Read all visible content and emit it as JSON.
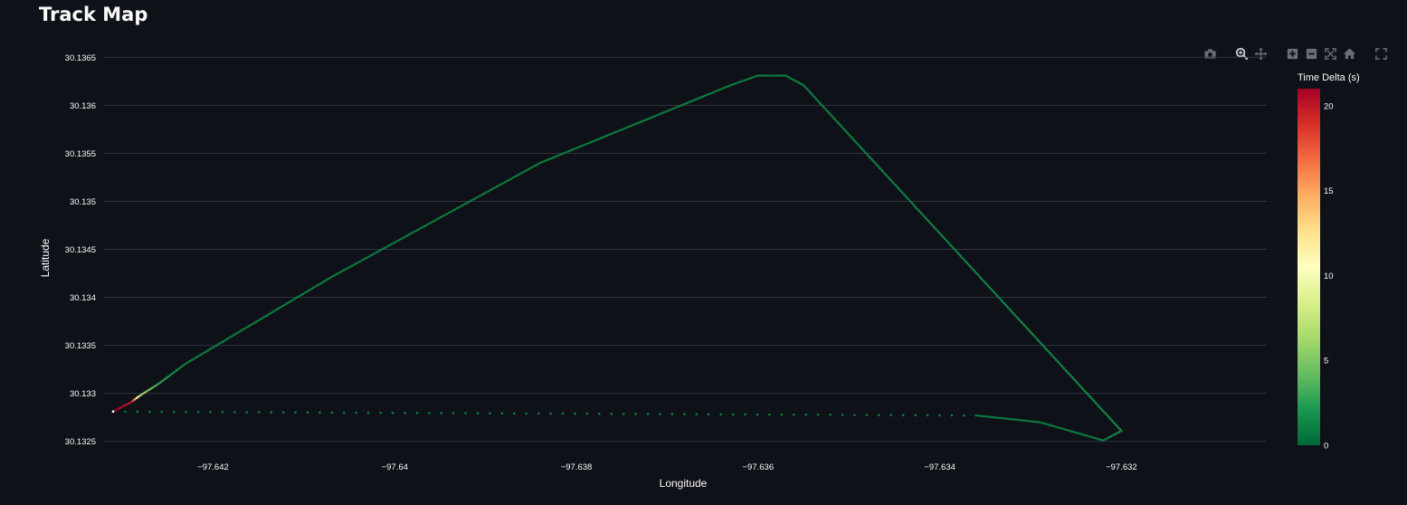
{
  "page": {
    "title": "Track Map"
  },
  "modebar": {
    "icons": [
      "camera-icon",
      "zoom-icon",
      "pan-icon",
      "zoom-in-icon",
      "zoom-out-icon",
      "autoscale-icon",
      "reset-axes-icon",
      "fullscreen-icon"
    ]
  },
  "chart_data": {
    "type": "scatter",
    "title": "",
    "xlabel": "Longitude",
    "ylabel": "Latitude",
    "xlim": [
      -97.6432,
      -97.6304
    ],
    "ylim": [
      30.13245,
      30.13655
    ],
    "x_ticks": [
      -97.642,
      -97.64,
      -97.638,
      -97.636,
      -97.634,
      -97.632
    ],
    "x_tick_labels": [
      "−97.642",
      "−97.64",
      "−97.638",
      "−97.636",
      "−97.634",
      "−97.632"
    ],
    "y_ticks": [
      30.1325,
      30.133,
      30.1335,
      30.134,
      30.1345,
      30.135,
      30.1355,
      30.136,
      30.1365
    ],
    "y_tick_labels": [
      "30.1325",
      "30.133",
      "30.1335",
      "30.134",
      "30.1345",
      "30.135",
      "30.1355",
      "30.136",
      "30.1365"
    ],
    "grid": "horizontal",
    "colorbar": {
      "title": "Time Delta (s)",
      "range": [
        0,
        21
      ],
      "ticks": [
        0,
        5,
        10,
        15,
        20
      ],
      "colors": [
        "#006837",
        "#1a9850",
        "#66bd63",
        "#a6d96a",
        "#d9ef8b",
        "#ffffbf",
        "#fee08b",
        "#fdae61",
        "#f46d43",
        "#d73027",
        "#a50026"
      ]
    },
    "track": [
      {
        "x": -97.6431,
        "y": 30.13281,
        "t": 21
      },
      {
        "x": -97.6429,
        "y": 30.13291,
        "t": 20
      },
      {
        "x": -97.6428,
        "y": 30.13298,
        "t": 7
      },
      {
        "x": -97.6426,
        "y": 30.1331,
        "t": 3
      },
      {
        "x": -97.6423,
        "y": 30.13331,
        "t": 1
      },
      {
        "x": -97.6407,
        "y": 30.13421,
        "t": 1
      },
      {
        "x": -97.6384,
        "y": 30.1354,
        "t": 1
      },
      {
        "x": -97.6363,
        "y": 30.13621,
        "t": 1
      },
      {
        "x": -97.636,
        "y": 30.13631,
        "t": 1
      },
      {
        "x": -97.6357,
        "y": 30.13631,
        "t": 1
      },
      {
        "x": -97.6355,
        "y": 30.13621,
        "t": 1
      },
      {
        "x": -97.632,
        "y": 30.13261,
        "t": 1.5
      },
      {
        "x": -97.6322,
        "y": 30.13251,
        "t": 1
      },
      {
        "x": -97.6329,
        "y": 30.1327,
        "t": 1
      },
      {
        "x": -97.6336,
        "y": 30.13277,
        "t": 1
      },
      {
        "x": -97.6431,
        "y": 30.13281,
        "t": 1
      }
    ]
  }
}
